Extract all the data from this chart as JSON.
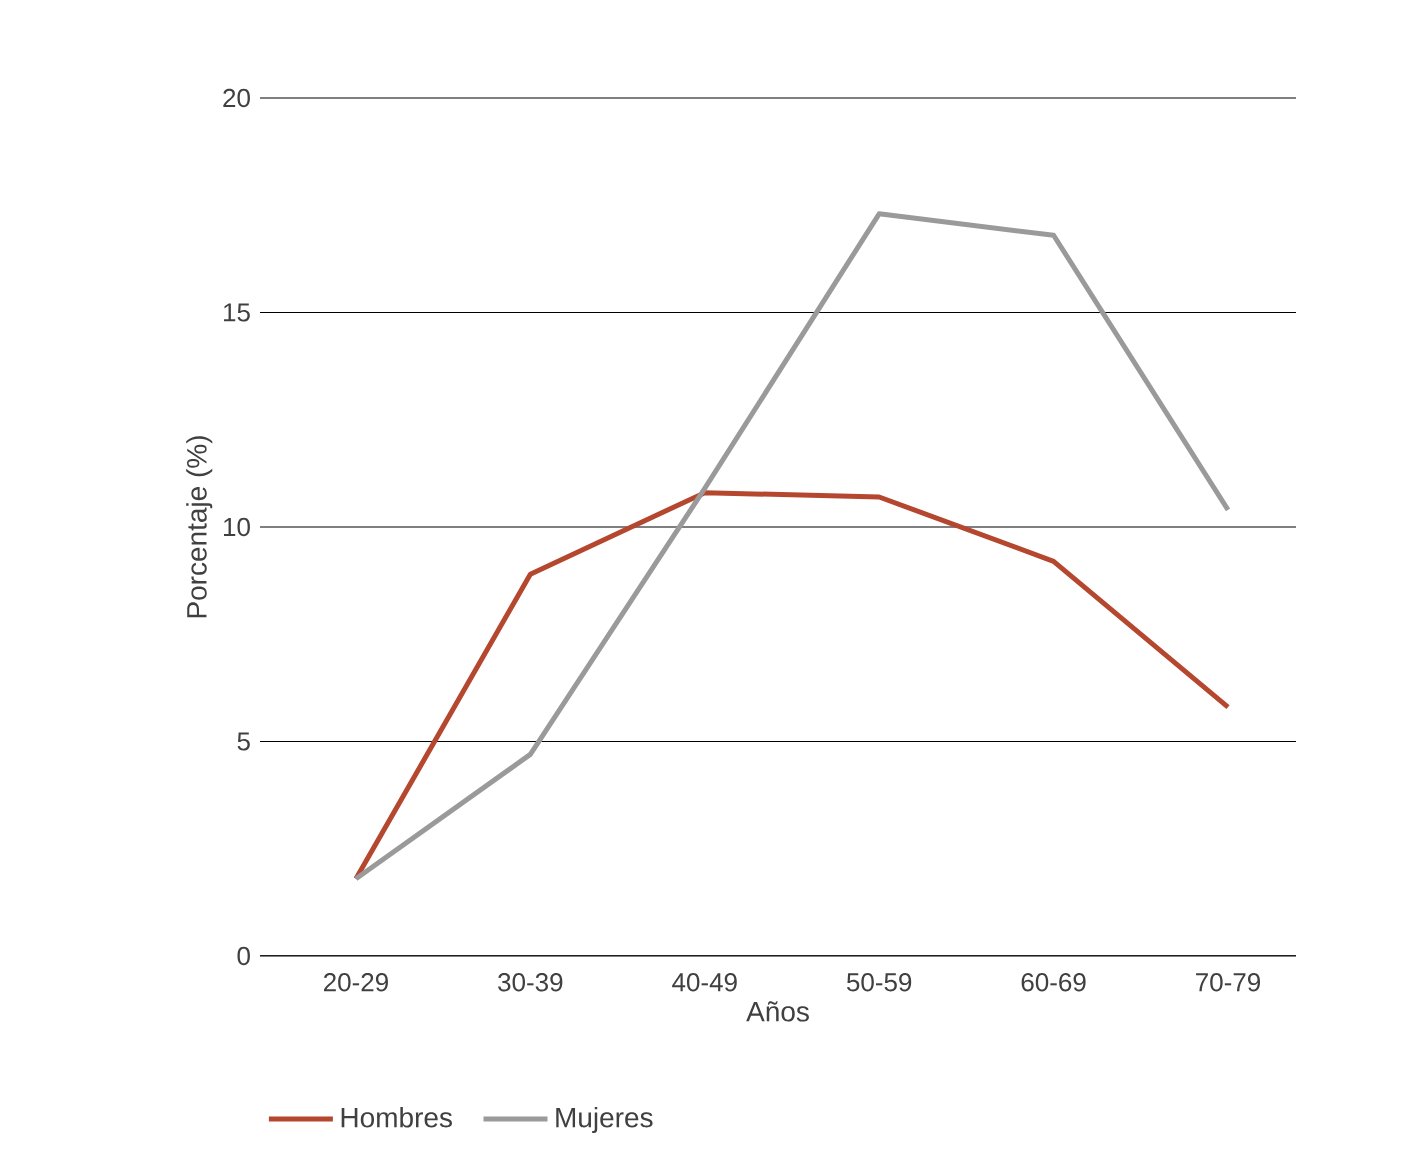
{
  "chart_data": {
    "type": "line",
    "xlabel": "Años",
    "ylabel": "Porcentaje (%)",
    "categories": [
      "20-29",
      "30-39",
      "40-49",
      "50-59",
      "60-69",
      "70-79"
    ],
    "series": [
      {
        "name": "Hombres",
        "color": "#b5472f",
        "values": [
          1.8,
          8.9,
          10.8,
          10.7,
          9.2,
          5.8
        ]
      },
      {
        "name": "Mujeres",
        "color": "#9a9a9a",
        "values": [
          1.8,
          4.7,
          10.9,
          17.3,
          16.8,
          10.4
        ]
      }
    ],
    "ylim": [
      0,
      20
    ],
    "yticks": [
      0,
      5,
      10,
      15,
      20
    ],
    "grid": "y",
    "legend": "bottom",
    "marker": "none",
    "line_style": "solid"
  }
}
